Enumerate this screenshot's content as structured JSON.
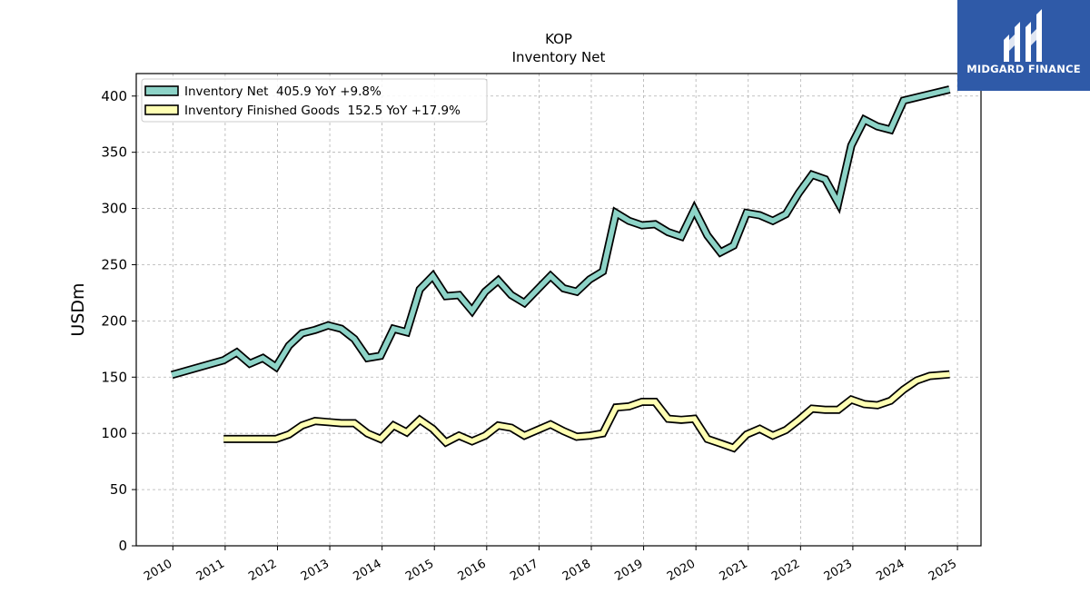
{
  "chart_data": {
    "type": "line",
    "title": "KOP",
    "subtitle": "Inventory Net",
    "ylabel": "USDm",
    "xlabel": "",
    "ylim": [
      0,
      420
    ],
    "xlim": [
      2009.3,
      2025.45
    ],
    "yticks": [
      0,
      50,
      100,
      150,
      200,
      250,
      300,
      350,
      400
    ],
    "xticks": [
      2010,
      2011,
      2012,
      2013,
      2014,
      2015,
      2016,
      2017,
      2018,
      2019,
      2020,
      2021,
      2022,
      2023,
      2024,
      2025
    ],
    "grid": true,
    "legend_position": "top-left",
    "series": [
      {
        "name": "Inventory Net  405.9 YoY +9.8%",
        "color": "#8dd3c7",
        "points": [
          [
            2009.98,
            152
          ],
          [
            2010.97,
            165
          ],
          [
            2011.22,
            172
          ],
          [
            2011.47,
            162
          ],
          [
            2011.72,
            167
          ],
          [
            2011.97,
            159
          ],
          [
            2012.22,
            178
          ],
          [
            2012.47,
            189
          ],
          [
            2012.72,
            192
          ],
          [
            2012.97,
            196
          ],
          [
            2013.22,
            193
          ],
          [
            2013.47,
            184
          ],
          [
            2013.72,
            167
          ],
          [
            2013.97,
            169
          ],
          [
            2014.22,
            193
          ],
          [
            2014.47,
            190
          ],
          [
            2014.72,
            228
          ],
          [
            2014.97,
            240
          ],
          [
            2015.22,
            222
          ],
          [
            2015.47,
            223
          ],
          [
            2015.72,
            209
          ],
          [
            2015.97,
            226
          ],
          [
            2016.22,
            236
          ],
          [
            2016.47,
            223
          ],
          [
            2016.72,
            216
          ],
          [
            2016.97,
            228
          ],
          [
            2017.22,
            240
          ],
          [
            2017.47,
            229
          ],
          [
            2017.72,
            226
          ],
          [
            2017.97,
            237
          ],
          [
            2018.22,
            244
          ],
          [
            2018.47,
            296
          ],
          [
            2018.72,
            289
          ],
          [
            2018.97,
            285
          ],
          [
            2019.22,
            286
          ],
          [
            2019.47,
            279
          ],
          [
            2019.72,
            275
          ],
          [
            2019.97,
            299
          ],
          [
            2020.22,
            276
          ],
          [
            2020.47,
            261
          ],
          [
            2020.72,
            267
          ],
          [
            2020.97,
            296
          ],
          [
            2021.22,
            294
          ],
          [
            2021.47,
            289
          ],
          [
            2021.72,
            295
          ],
          [
            2021.97,
            314
          ],
          [
            2022.22,
            330
          ],
          [
            2022.47,
            326
          ],
          [
            2022.72,
            305
          ],
          [
            2022.97,
            356
          ],
          [
            2023.22,
            379
          ],
          [
            2023.47,
            373
          ],
          [
            2023.72,
            370
          ],
          [
            2023.97,
            396
          ],
          [
            2024.85,
            405.9
          ]
        ]
      },
      {
        "name": "Inventory Finished Goods  152.5 YoY +17.9%",
        "color": "#ffffb3",
        "points": [
          [
            2010.97,
            95
          ],
          [
            2011.97,
            95
          ],
          [
            2012.22,
            99
          ],
          [
            2012.47,
            107
          ],
          [
            2012.72,
            111
          ],
          [
            2012.97,
            110
          ],
          [
            2013.22,
            109
          ],
          [
            2013.47,
            109
          ],
          [
            2013.72,
            100
          ],
          [
            2013.97,
            95
          ],
          [
            2014.22,
            107
          ],
          [
            2014.47,
            101
          ],
          [
            2014.72,
            112
          ],
          [
            2014.97,
            104
          ],
          [
            2015.22,
            92
          ],
          [
            2015.47,
            98
          ],
          [
            2015.72,
            93
          ],
          [
            2015.97,
            98
          ],
          [
            2016.22,
            107
          ],
          [
            2016.47,
            105
          ],
          [
            2016.72,
            98
          ],
          [
            2016.97,
            103
          ],
          [
            2017.22,
            108
          ],
          [
            2017.47,
            102
          ],
          [
            2017.72,
            97
          ],
          [
            2017.97,
            98
          ],
          [
            2018.22,
            100
          ],
          [
            2018.47,
            123
          ],
          [
            2018.72,
            124
          ],
          [
            2018.97,
            128
          ],
          [
            2019.22,
            128
          ],
          [
            2019.47,
            113
          ],
          [
            2019.72,
            112
          ],
          [
            2019.97,
            113
          ],
          [
            2020.22,
            95
          ],
          [
            2020.47,
            91
          ],
          [
            2020.72,
            87
          ],
          [
            2020.97,
            99
          ],
          [
            2021.22,
            104
          ],
          [
            2021.47,
            98
          ],
          [
            2021.72,
            103
          ],
          [
            2021.97,
            112
          ],
          [
            2022.22,
            122
          ],
          [
            2022.47,
            121
          ],
          [
            2022.72,
            121
          ],
          [
            2022.97,
            130
          ],
          [
            2023.22,
            126
          ],
          [
            2023.47,
            125
          ],
          [
            2023.72,
            129
          ],
          [
            2023.97,
            139
          ],
          [
            2024.22,
            147
          ],
          [
            2024.47,
            151
          ],
          [
            2024.85,
            152.5
          ]
        ]
      }
    ]
  },
  "logo": {
    "text": "MIDGARD FINANCE",
    "bg_color": "#2f5aa8"
  }
}
